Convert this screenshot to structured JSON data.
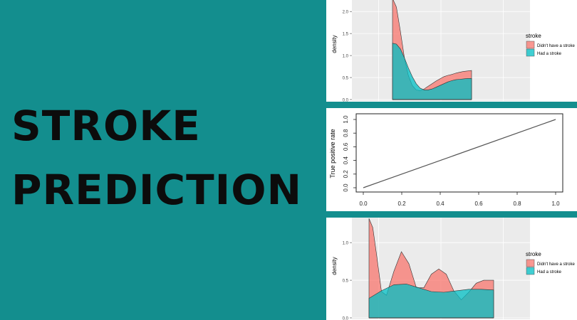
{
  "title": {
    "line1": "STROKE",
    "line2": "PREDICTION"
  },
  "colors": {
    "background": "#138e8e",
    "stroke_no": "#f8766d",
    "stroke_yes": "#00bfc4",
    "panel_bg": "#ebebeb"
  },
  "chart_data": [
    {
      "type": "area",
      "ylabel": "density",
      "y_ticks": [
        "0.0",
        "0.5",
        "1.0",
        "1.5",
        "2.0"
      ],
      "ylim": [
        0,
        2.1
      ],
      "legend": {
        "title": "stroke",
        "position": "right",
        "entries": [
          "Didn't have a stroke",
          "Had a stroke"
        ]
      },
      "series": [
        {
          "name": "Didn't have a stroke",
          "color": "#f8766d",
          "x": [
            0,
            0.05,
            0.1,
            0.15,
            0.2,
            0.25,
            0.3,
            0.35,
            0.4,
            0.45,
            0.5,
            0.55,
            0.6,
            0.65,
            0.7,
            0.75,
            0.8,
            0.85,
            0.9,
            0.95,
            1
          ],
          "y": [
            2.3,
            2.1,
            1.55,
            0.95,
            0.55,
            0.32,
            0.22,
            0.2,
            0.24,
            0.3,
            0.36,
            0.42,
            0.47,
            0.52,
            0.55,
            0.57,
            0.6,
            0.62,
            0.64,
            0.65,
            0.66
          ]
        },
        {
          "name": "Had a stroke",
          "color": "#00bfc4",
          "x": [
            0,
            0.05,
            0.1,
            0.15,
            0.2,
            0.25,
            0.3,
            0.35,
            0.4,
            0.45,
            0.5,
            0.55,
            0.6,
            0.65,
            0.7,
            0.75,
            0.8,
            0.85,
            0.9,
            0.95,
            1
          ],
          "y": [
            1.28,
            1.26,
            1.15,
            0.95,
            0.72,
            0.52,
            0.36,
            0.26,
            0.22,
            0.22,
            0.24,
            0.28,
            0.32,
            0.36,
            0.4,
            0.43,
            0.45,
            0.46,
            0.47,
            0.48,
            0.48
          ]
        }
      ]
    },
    {
      "type": "line",
      "ylabel": "True positive rate",
      "x_ticks": [
        "0.0",
        "0.2",
        "0.4",
        "0.6",
        "0.8",
        "1.0"
      ],
      "y_ticks": [
        "0.0",
        "0.2",
        "0.4",
        "0.6",
        "0.8",
        "1.0"
      ],
      "xlim": [
        0,
        1
      ],
      "ylim": [
        0,
        1
      ],
      "series": [
        {
          "x": [
            0,
            1
          ],
          "y": [
            0,
            1
          ]
        }
      ]
    },
    {
      "type": "area",
      "ylabel": "density",
      "y_ticks": [
        "0.0",
        "0.5",
        "1.0"
      ],
      "ylim": [
        0,
        1.2
      ],
      "legend": {
        "title": "stroke",
        "position": "right",
        "entries": [
          "Didn't have a stroke",
          "Had a stroke"
        ]
      },
      "series": [
        {
          "name": "Didn't have a stroke",
          "color": "#f8766d",
          "x": [
            0,
            0.03,
            0.06,
            0.1,
            0.14,
            0.2,
            0.26,
            0.32,
            0.38,
            0.44,
            0.5,
            0.56,
            0.62,
            0.68,
            0.74,
            0.8,
            0.86,
            0.92,
            1
          ],
          "y": [
            1.35,
            1.2,
            0.85,
            0.35,
            0.3,
            0.62,
            0.88,
            0.72,
            0.4,
            0.4,
            0.58,
            0.65,
            0.58,
            0.36,
            0.24,
            0.34,
            0.46,
            0.5,
            0.5
          ]
        },
        {
          "name": "Had a stroke",
          "color": "#00bfc4",
          "x": [
            0,
            0.1,
            0.2,
            0.3,
            0.4,
            0.5,
            0.6,
            0.7,
            0.8,
            0.9,
            1
          ],
          "y": [
            0.26,
            0.36,
            0.44,
            0.45,
            0.4,
            0.35,
            0.34,
            0.36,
            0.38,
            0.38,
            0.37
          ]
        }
      ]
    }
  ]
}
